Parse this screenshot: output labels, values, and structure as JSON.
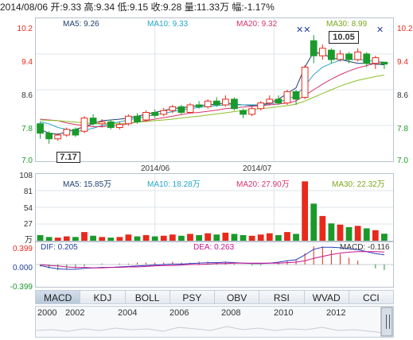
{
  "header": {
    "date": "2014/08/06",
    "open": "开:9.33",
    "high": "高:9.34",
    "low": "低:9.15",
    "close": "收:9.28",
    "volume": "量:11.33万",
    "change": "幅:-1.17%"
  },
  "price_panel": {
    "ma5": "MA5: 9.26",
    "ma10": "MA10: 9.33",
    "ma20": "MA20: 9.32",
    "ma30": "MA30: 8.99",
    "y_ticks": [
      "10.2",
      "9.4",
      "8.6",
      "7.8",
      "7.0"
    ],
    "x_ticks": [
      "2014/06",
      "2014/07"
    ],
    "high_marker": "10.05",
    "low_marker": "7.17"
  },
  "volume_panel": {
    "ma5": "MA5: 15.85万",
    "ma10": "MA10: 18.28万",
    "ma20": "MA20: 27.90万",
    "ma30": "MA30: 22.32万",
    "y_ticks": [
      "108",
      "81",
      "54",
      "27"
    ],
    "unit": "万"
  },
  "macd_panel": {
    "dif": "DIF: 0.205",
    "dea": "DEA: 0.263",
    "macd": "MACD: -0.116",
    "y_ticks": [
      "0.399",
      "0.000",
      "-0.399"
    ]
  },
  "tabs": [
    "MACD",
    "KDJ",
    "BOLL",
    "PSY",
    "OBV",
    "RSI",
    "WVAD",
    "CCI"
  ],
  "active_tab": "MACD",
  "years": [
    "2000",
    "2002",
    "2004",
    "2006",
    "2008",
    "2010",
    "2012"
  ],
  "colors": {
    "up": "#e8291c",
    "down": "#1a9a2a",
    "ma5": "#1f3f6e",
    "ma10": "#25a6c8",
    "ma20": "#d6336c",
    "ma30": "#8cbf26"
  },
  "chart_data": [
    {
      "type": "candlestick",
      "ylim": [
        7.0,
        10.2
      ],
      "series": [
        {
          "name": "MA5",
          "values": [
            7.55,
            7.45,
            7.42,
            7.48,
            7.55,
            7.62,
            7.7,
            7.78,
            7.8,
            7.82,
            7.85,
            7.9,
            7.95,
            8.0,
            8.05,
            8.1,
            8.12,
            8.15,
            8.18,
            8.2,
            8.22,
            8.25,
            8.22,
            8.2,
            8.18,
            8.2,
            8.25,
            8.35,
            8.5,
            8.65,
            9.2,
            9.6,
            9.55,
            9.45,
            9.4,
            9.35,
            9.3,
            9.3,
            9.28,
            9.26
          ]
        },
        {
          "name": "MA10",
          "values": [
            7.75,
            7.7,
            7.6,
            7.55,
            7.5,
            7.52,
            7.58,
            7.65,
            7.7,
            7.75,
            7.8,
            7.85,
            7.9,
            7.93,
            7.97,
            8.02,
            8.07,
            8.1,
            8.13,
            8.16,
            8.18,
            8.2,
            8.2,
            8.2,
            8.2,
            8.2,
            8.22,
            8.27,
            8.35,
            8.45,
            8.7,
            9.0,
            9.2,
            9.3,
            9.38,
            9.4,
            9.4,
            9.38,
            9.35,
            9.33
          ]
        },
        {
          "name": "MA20",
          "values": [
            7.82,
            7.8,
            7.78,
            7.72,
            7.68,
            7.65,
            7.62,
            7.62,
            7.64,
            7.66,
            7.7,
            7.74,
            7.78,
            7.82,
            7.86,
            7.9,
            7.94,
            7.98,
            8.0,
            8.03,
            8.06,
            8.1,
            8.12,
            8.14,
            8.16,
            8.18,
            8.2,
            8.22,
            8.25,
            8.3,
            8.45,
            8.6,
            8.75,
            8.88,
            9.0,
            9.1,
            9.18,
            9.24,
            9.3,
            9.32
          ]
        },
        {
          "name": "MA30",
          "values": [
            7.8,
            7.79,
            7.78,
            7.76,
            7.74,
            7.72,
            7.7,
            7.7,
            7.7,
            7.7,
            7.72,
            7.74,
            7.76,
            7.78,
            7.8,
            7.82,
            7.85,
            7.88,
            7.9,
            7.93,
            7.96,
            7.99,
            8.02,
            8.05,
            8.08,
            8.1,
            8.12,
            8.15,
            8.18,
            8.22,
            8.3,
            8.4,
            8.5,
            8.6,
            8.7,
            8.78,
            8.85,
            8.9,
            8.95,
            8.99
          ]
        }
      ],
      "candles": [
        [
          7.7,
          7.45,
          7.75,
          7.3
        ],
        [
          7.45,
          7.3,
          7.5,
          7.17
        ],
        [
          7.3,
          7.4,
          7.45,
          7.25
        ],
        [
          7.4,
          7.55,
          7.6,
          7.35
        ],
        [
          7.55,
          7.4,
          7.6,
          7.35
        ],
        [
          7.5,
          7.85,
          7.9,
          7.45
        ],
        [
          7.85,
          7.7,
          7.95,
          7.65
        ],
        [
          7.7,
          7.75,
          7.82,
          7.6
        ],
        [
          7.75,
          7.6,
          7.8,
          7.55
        ],
        [
          7.6,
          7.68,
          7.75,
          7.55
        ],
        [
          7.7,
          7.9,
          7.95,
          7.65
        ],
        [
          7.9,
          7.75,
          7.98,
          7.7
        ],
        [
          7.8,
          8.0,
          8.05,
          7.75
        ],
        [
          8.0,
          7.92,
          8.08,
          7.85
        ],
        [
          7.95,
          8.05,
          8.12,
          7.9
        ],
        [
          8.05,
          8.15,
          8.2,
          7.98
        ],
        [
          8.15,
          8.0,
          8.2,
          7.95
        ],
        [
          8.0,
          8.2,
          8.25,
          7.98
        ],
        [
          8.2,
          8.15,
          8.3,
          8.1
        ],
        [
          8.15,
          8.3,
          8.35,
          8.1
        ],
        [
          8.3,
          8.2,
          8.4,
          8.15
        ],
        [
          8.2,
          8.35,
          8.45,
          8.15
        ],
        [
          8.35,
          8.1,
          8.4,
          8.05
        ],
        [
          8.05,
          7.95,
          8.1,
          7.85
        ],
        [
          7.95,
          8.1,
          8.15,
          7.9
        ],
        [
          8.1,
          8.25,
          8.3,
          8.05
        ],
        [
          8.25,
          8.35,
          8.45,
          8.2
        ],
        [
          8.35,
          8.25,
          8.45,
          8.2
        ],
        [
          8.25,
          8.55,
          8.6,
          8.2
        ],
        [
          8.55,
          8.35,
          8.6,
          8.2
        ],
        [
          8.4,
          9.2,
          9.25,
          8.35
        ],
        [
          9.9,
          9.5,
          10.05,
          9.3
        ],
        [
          9.5,
          9.7,
          9.8,
          9.4
        ],
        [
          9.65,
          9.4,
          9.7,
          9.3
        ],
        [
          9.4,
          9.55,
          9.65,
          9.35
        ],
        [
          9.55,
          9.4,
          9.6,
          9.3
        ],
        [
          9.4,
          9.6,
          9.7,
          9.35
        ],
        [
          9.55,
          9.3,
          9.6,
          9.2
        ],
        [
          9.3,
          9.45,
          9.5,
          9.15
        ],
        [
          9.33,
          9.28,
          9.34,
          9.15
        ]
      ]
    },
    {
      "type": "bar",
      "ylim": [
        0,
        108
      ],
      "values": [
        9,
        6,
        5,
        7,
        6,
        14,
        8,
        6,
        5,
        6,
        10,
        7,
        9,
        7,
        8,
        10,
        8,
        11,
        9,
        12,
        10,
        13,
        11,
        9,
        8,
        10,
        12,
        9,
        14,
        11,
        96,
        60,
        40,
        28,
        26,
        22,
        24,
        20,
        17,
        11.33
      ],
      "up": [
        0,
        0,
        1,
        1,
        0,
        1,
        0,
        1,
        0,
        1,
        1,
        0,
        1,
        0,
        1,
        1,
        0,
        1,
        0,
        1,
        0,
        1,
        0,
        0,
        1,
        1,
        1,
        0,
        1,
        0,
        1,
        0,
        1,
        0,
        1,
        0,
        1,
        0,
        1,
        0
      ]
    },
    {
      "type": "line",
      "ylim": [
        -0.399,
        0.399
      ],
      "series": [
        {
          "name": "DIF",
          "values": [
            -0.02,
            -0.06,
            -0.09,
            -0.1,
            -0.1,
            -0.08,
            -0.07,
            -0.06,
            -0.06,
            -0.05,
            -0.04,
            -0.03,
            -0.02,
            -0.01,
            0.0,
            0.01,
            0.01,
            0.02,
            0.03,
            0.04,
            0.04,
            0.05,
            0.04,
            0.03,
            0.02,
            0.02,
            0.03,
            0.05,
            0.08,
            0.1,
            0.2,
            0.32,
            0.36,
            0.36,
            0.35,
            0.33,
            0.31,
            0.27,
            0.23,
            0.205
          ]
        },
        {
          "name": "DEA",
          "values": [
            0.0,
            -0.02,
            -0.03,
            -0.05,
            -0.06,
            -0.06,
            -0.07,
            -0.07,
            -0.06,
            -0.06,
            -0.05,
            -0.05,
            -0.04,
            -0.03,
            -0.02,
            -0.02,
            -0.01,
            0.0,
            0.0,
            0.01,
            0.02,
            0.02,
            0.03,
            0.03,
            0.03,
            0.03,
            0.03,
            0.03,
            0.04,
            0.05,
            0.08,
            0.13,
            0.17,
            0.21,
            0.24,
            0.26,
            0.27,
            0.27,
            0.27,
            0.263
          ]
        }
      ]
    }
  ]
}
